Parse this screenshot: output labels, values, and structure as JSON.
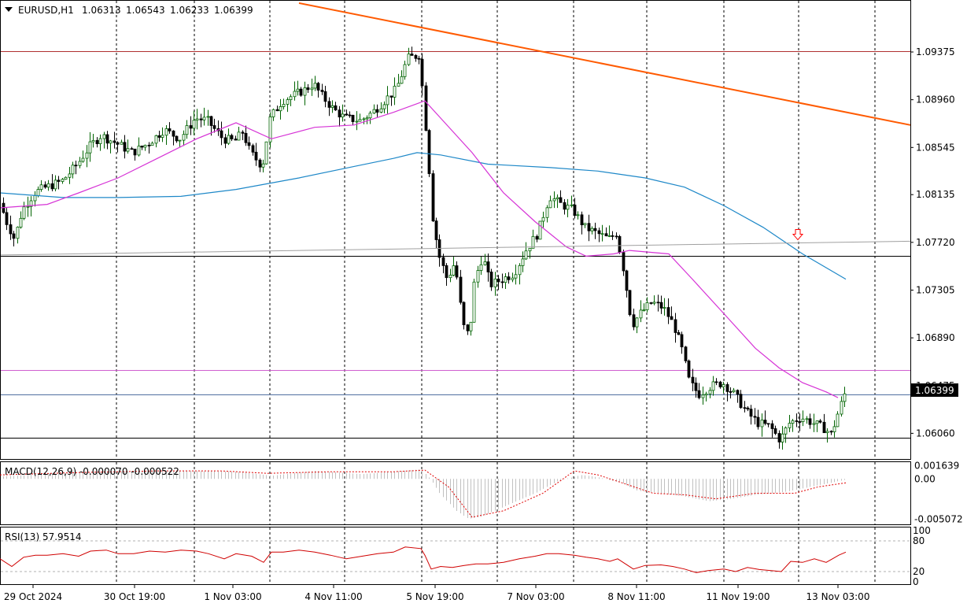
{
  "header": {
    "symbol": "EURUSD,H1",
    "open": "1.06313",
    "high": "1.06543",
    "low": "1.06233",
    "close": "1.06399"
  },
  "macd_label": "MACD(12,26,9) -0.000070 -0.000522",
  "rsi_label": "RSI(13) 57.9514",
  "current_price_label": "1.06399",
  "colors": {
    "bull": "#006400",
    "bear": "#000000",
    "ma_fast": "#d633d6",
    "ma_slow": "#1e88c8",
    "trendline": "#ff5a00",
    "macd_hist": "#c0c0c0",
    "macd_signal": "#e00000",
    "rsi": "#d00000",
    "sell_arrow": "#ff0000"
  },
  "chart_data": [
    {
      "type": "candlestick",
      "symbol": "EURUSD",
      "timeframe": "H1",
      "price_ticks": [
        "1.09375",
        "1.08960",
        "1.08545",
        "1.08135",
        "1.07720",
        "1.07305",
        "1.06890",
        "1.06475",
        "1.06060"
      ],
      "ylim": [
        1.0583,
        1.0982
      ],
      "x_ticks": [
        "29 Oct 2024",
        "30 Oct 19:00",
        "1 Nov 03:00",
        "4 Nov 11:00",
        "5 Nov 19:00",
        "7 Nov 03:00",
        "8 Nov 11:00",
        "11 Nov 19:00",
        "13 Nov 03:00"
      ],
      "grid": true,
      "price_path": [
        [
          0,
          1.081
        ],
        [
          10,
          1.079
        ],
        [
          20,
          1.0775
        ],
        [
          30,
          1.08
        ],
        [
          45,
          1.0815
        ],
        [
          60,
          1.082
        ],
        [
          80,
          1.0825
        ],
        [
          100,
          1.084
        ],
        [
          115,
          1.0855
        ],
        [
          130,
          1.0865
        ],
        [
          150,
          1.0858
        ],
        [
          170,
          1.085
        ],
        [
          190,
          1.0858
        ],
        [
          210,
          1.087
        ],
        [
          230,
          1.0862
        ],
        [
          250,
          1.088
        ],
        [
          265,
          1.0878
        ],
        [
          285,
          1.0862
        ],
        [
          300,
          1.086
        ],
        [
          310,
          1.0868
        ],
        [
          320,
          1.085
        ],
        [
          335,
          1.0838
        ],
        [
          345,
          1.088
        ],
        [
          360,
          1.0895
        ],
        [
          375,
          1.09
        ],
        [
          390,
          1.0905
        ],
        [
          400,
          1.091
        ],
        [
          410,
          1.09
        ],
        [
          425,
          1.0888
        ],
        [
          440,
          1.088
        ],
        [
          460,
          1.0878
        ],
        [
          475,
          1.0885
        ],
        [
          490,
          1.0895
        ],
        [
          505,
          1.0905
        ],
        [
          520,
          1.0932
        ],
        [
          535,
          1.0935
        ],
        [
          545,
          1.0855
        ],
        [
          552,
          1.079
        ],
        [
          560,
          1.076
        ],
        [
          570,
          1.074
        ],
        [
          580,
          1.0755
        ],
        [
          590,
          1.07
        ],
        [
          598,
          1.069
        ],
        [
          605,
          1.074
        ],
        [
          615,
          1.076
        ],
        [
          625,
          1.0735
        ],
        [
          640,
          1.074
        ],
        [
          655,
          1.0745
        ],
        [
          670,
          1.0765
        ],
        [
          685,
          1.078
        ],
        [
          700,
          1.0812
        ],
        [
          715,
          1.0805
        ],
        [
          730,
          1.08
        ],
        [
          745,
          1.0785
        ],
        [
          760,
          1.078
        ],
        [
          775,
          1.0775
        ],
        [
          785,
          1.078
        ],
        [
          795,
          1.0745
        ],
        [
          805,
          1.07
        ],
        [
          815,
          1.071
        ],
        [
          830,
          1.072
        ],
        [
          845,
          1.0715
        ],
        [
          858,
          1.07
        ],
        [
          868,
          1.068
        ],
        [
          878,
          1.065
        ],
        [
          890,
          1.064
        ],
        [
          905,
          1.0647
        ],
        [
          920,
          1.065
        ],
        [
          935,
          1.064
        ],
        [
          950,
          1.0625
        ],
        [
          965,
          1.0615
        ],
        [
          980,
          1.0612
        ],
        [
          993,
          1.06
        ],
        [
          1005,
          1.0615
        ],
        [
          1020,
          1.062
        ],
        [
          1035,
          1.0615
        ],
        [
          1050,
          1.061
        ],
        [
          1058,
          1.0605
        ],
        [
          1066,
          1.0622
        ],
        [
          1075,
          1.064
        ]
      ],
      "horizontal_levels": [
        {
          "price": 1.09385,
          "color": "#b03030"
        },
        {
          "price": 1.07605,
          "color": "#000000"
        },
        {
          "price": 1.0661,
          "color": "#d060d0"
        },
        {
          "price": 1.06399,
          "color": "#5070a0"
        },
        {
          "price": 1.0602,
          "color": "#000000"
        }
      ],
      "trendline": {
        "from": [
          380,
          1.098
        ],
        "to": [
          1157,
          1.0874
        ]
      },
      "sloped_gray_line": {
        "from": [
          0,
          1.0761
        ],
        "to": [
          1157,
          1.0773
        ]
      },
      "ma_fast_path": [
        [
          0,
          1.0802
        ],
        [
          60,
          1.0805
        ],
        [
          100,
          1.0815
        ],
        [
          150,
          1.0828
        ],
        [
          200,
          1.0845
        ],
        [
          250,
          1.0862
        ],
        [
          300,
          1.0876
        ],
        [
          345,
          1.0862
        ],
        [
          400,
          1.0872
        ],
        [
          450,
          1.0874
        ],
        [
          500,
          1.0885
        ],
        [
          540,
          1.0895
        ],
        [
          560,
          1.088
        ],
        [
          600,
          1.085
        ],
        [
          640,
          1.0815
        ],
        [
          680,
          1.079
        ],
        [
          720,
          1.0768
        ],
        [
          745,
          1.076
        ],
        [
          780,
          1.0762
        ],
        [
          800,
          1.0765
        ],
        [
          850,
          1.0762
        ],
        [
          880,
          1.074
        ],
        [
          920,
          1.071
        ],
        [
          960,
          1.068
        ],
        [
          990,
          1.0663
        ],
        [
          1020,
          1.065
        ],
        [
          1050,
          1.0642
        ],
        [
          1065,
          1.0637
        ]
      ],
      "ma_slow_path": [
        [
          0,
          1.0815
        ],
        [
          80,
          1.0811
        ],
        [
          150,
          1.0811
        ],
        [
          230,
          1.0812
        ],
        [
          300,
          1.0818
        ],
        [
          380,
          1.0828
        ],
        [
          450,
          1.0838
        ],
        [
          500,
          1.0845
        ],
        [
          530,
          1.085
        ],
        [
          560,
          1.0848
        ],
        [
          620,
          1.084
        ],
        [
          700,
          1.0837
        ],
        [
          760,
          1.0834
        ],
        [
          820,
          1.0828
        ],
        [
          870,
          1.082
        ],
        [
          920,
          1.0804
        ],
        [
          970,
          1.0785
        ],
        [
          1020,
          1.0762
        ],
        [
          1075,
          1.074
        ]
      ],
      "sell_arrow": {
        "x": 1014,
        "price": 1.0777
      }
    },
    {
      "type": "bar",
      "name": "MACD(12,26,9)",
      "values_label": [
        "-0.000070",
        "-0.000522"
      ],
      "ticks": [
        "0.001639",
        "0.00",
        "-0.005072"
      ],
      "ylim": [
        -0.0058,
        0.0021
      ],
      "histogram_path": [
        [
          0,
          0.0003
        ],
        [
          60,
          0.0006
        ],
        [
          120,
          0.0008
        ],
        [
          180,
          0.001
        ],
        [
          240,
          0.001
        ],
        [
          300,
          0.0009
        ],
        [
          345,
          0.0004
        ],
        [
          400,
          0.001
        ],
        [
          460,
          0.0006
        ],
        [
          500,
          0.0009
        ],
        [
          535,
          0.0012
        ],
        [
          545,
          0.0002
        ],
        [
          560,
          -0.002
        ],
        [
          580,
          -0.004
        ],
        [
          595,
          -0.005
        ],
        [
          610,
          -0.0048
        ],
        [
          640,
          -0.0035
        ],
        [
          680,
          -0.0018
        ],
        [
          710,
          -0.0002
        ],
        [
          740,
          0.0005
        ],
        [
          760,
          0.0002
        ],
        [
          790,
          -0.0005
        ],
        [
          810,
          -0.0015
        ],
        [
          840,
          -0.0018
        ],
        [
          870,
          -0.0022
        ],
        [
          900,
          -0.0028
        ],
        [
          930,
          -0.0025
        ],
        [
          960,
          -0.002
        ],
        [
          1000,
          -0.0016
        ],
        [
          1030,
          -0.001
        ],
        [
          1075,
          -0.0001
        ]
      ],
      "signal_path": [
        [
          0,
          0.0005
        ],
        [
          100,
          0.0008
        ],
        [
          200,
          0.001
        ],
        [
          280,
          0.001
        ],
        [
          340,
          0.0007
        ],
        [
          420,
          0.0009
        ],
        [
          500,
          0.0009
        ],
        [
          540,
          0.0011
        ],
        [
          570,
          -0.001
        ],
        [
          600,
          -0.0048
        ],
        [
          640,
          -0.004
        ],
        [
          690,
          -0.0018
        ],
        [
          730,
          0.001
        ],
        [
          760,
          0.0005
        ],
        [
          800,
          -0.0008
        ],
        [
          830,
          -0.0018
        ],
        [
          870,
          -0.002
        ],
        [
          910,
          -0.0025
        ],
        [
          960,
          -0.0018
        ],
        [
          1010,
          -0.0018
        ],
        [
          1040,
          -0.001
        ],
        [
          1075,
          -0.0005
        ]
      ]
    },
    {
      "type": "line",
      "name": "RSI(13)",
      "value_label": "57.9514",
      "ticks": [
        "100",
        "80",
        "20",
        "0"
      ],
      "ylim": [
        0,
        100
      ],
      "levels": [
        80,
        20
      ],
      "rsi_path": [
        [
          0,
          45
        ],
        [
          15,
          30
        ],
        [
          30,
          48
        ],
        [
          45,
          52
        ],
        [
          60,
          52
        ],
        [
          80,
          55
        ],
        [
          100,
          50
        ],
        [
          115,
          60
        ],
        [
          135,
          62
        ],
        [
          150,
          55
        ],
        [
          170,
          55
        ],
        [
          190,
          60
        ],
        [
          210,
          58
        ],
        [
          230,
          62
        ],
        [
          250,
          60
        ],
        [
          265,
          55
        ],
        [
          285,
          45
        ],
        [
          300,
          55
        ],
        [
          320,
          50
        ],
        [
          335,
          38
        ],
        [
          345,
          58
        ],
        [
          360,
          58
        ],
        [
          380,
          62
        ],
        [
          400,
          58
        ],
        [
          420,
          52
        ],
        [
          440,
          45
        ],
        [
          460,
          50
        ],
        [
          480,
          55
        ],
        [
          500,
          58
        ],
        [
          515,
          68
        ],
        [
          535,
          65
        ],
        [
          540,
          52
        ],
        [
          548,
          25
        ],
        [
          560,
          30
        ],
        [
          575,
          28
        ],
        [
          590,
          32
        ],
        [
          605,
          35
        ],
        [
          620,
          35
        ],
        [
          640,
          38
        ],
        [
          660,
          45
        ],
        [
          680,
          50
        ],
        [
          695,
          55
        ],
        [
          710,
          55
        ],
        [
          730,
          52
        ],
        [
          745,
          48
        ],
        [
          760,
          45
        ],
        [
          775,
          40
        ],
        [
          785,
          45
        ],
        [
          795,
          35
        ],
        [
          805,
          25
        ],
        [
          820,
          32
        ],
        [
          840,
          33
        ],
        [
          855,
          30
        ],
        [
          870,
          25
        ],
        [
          885,
          18
        ],
        [
          900,
          22
        ],
        [
          920,
          25
        ],
        [
          935,
          20
        ],
        [
          950,
          28
        ],
        [
          965,
          24
        ],
        [
          980,
          22
        ],
        [
          993,
          20
        ],
        [
          1005,
          40
        ],
        [
          1020,
          38
        ],
        [
          1035,
          45
        ],
        [
          1050,
          38
        ],
        [
          1058,
          45
        ],
        [
          1066,
          52
        ],
        [
          1075,
          58
        ]
      ]
    }
  ]
}
